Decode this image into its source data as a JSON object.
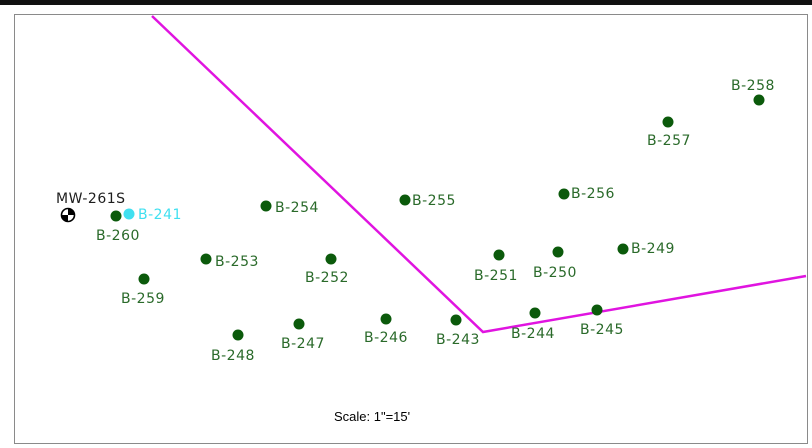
{
  "map": {
    "scale_label": "Scale: 1\"=15'",
    "colors": {
      "boundary": "#e014e0",
      "boring": "#0b5a0b",
      "boring_label": "#2a6a2a",
      "highlight": "#40e0f0",
      "well_label": "#1d1d1d"
    },
    "monitoring_well": {
      "id": "mw-261s",
      "label": "MW-261S",
      "icon": "monitoring-well-icon"
    },
    "borings": [
      {
        "id": "b-241",
        "label": "B-241",
        "highlight": true
      },
      {
        "id": "b-243",
        "label": "B-243"
      },
      {
        "id": "b-244",
        "label": "B-244"
      },
      {
        "id": "b-245",
        "label": "B-245"
      },
      {
        "id": "b-246",
        "label": "B-246"
      },
      {
        "id": "b-247",
        "label": "B-247"
      },
      {
        "id": "b-248",
        "label": "B-248"
      },
      {
        "id": "b-249",
        "label": "B-249"
      },
      {
        "id": "b-250",
        "label": "B-250"
      },
      {
        "id": "b-251",
        "label": "B-251"
      },
      {
        "id": "b-252",
        "label": "B-252"
      },
      {
        "id": "b-253",
        "label": "B-253"
      },
      {
        "id": "b-254",
        "label": "B-254"
      },
      {
        "id": "b-255",
        "label": "B-255"
      },
      {
        "id": "b-256",
        "label": "B-256"
      },
      {
        "id": "b-257",
        "label": "B-257"
      },
      {
        "id": "b-258",
        "label": "B-258"
      },
      {
        "id": "b-259",
        "label": "B-259"
      },
      {
        "id": "b-260",
        "label": "B-260"
      }
    ]
  }
}
